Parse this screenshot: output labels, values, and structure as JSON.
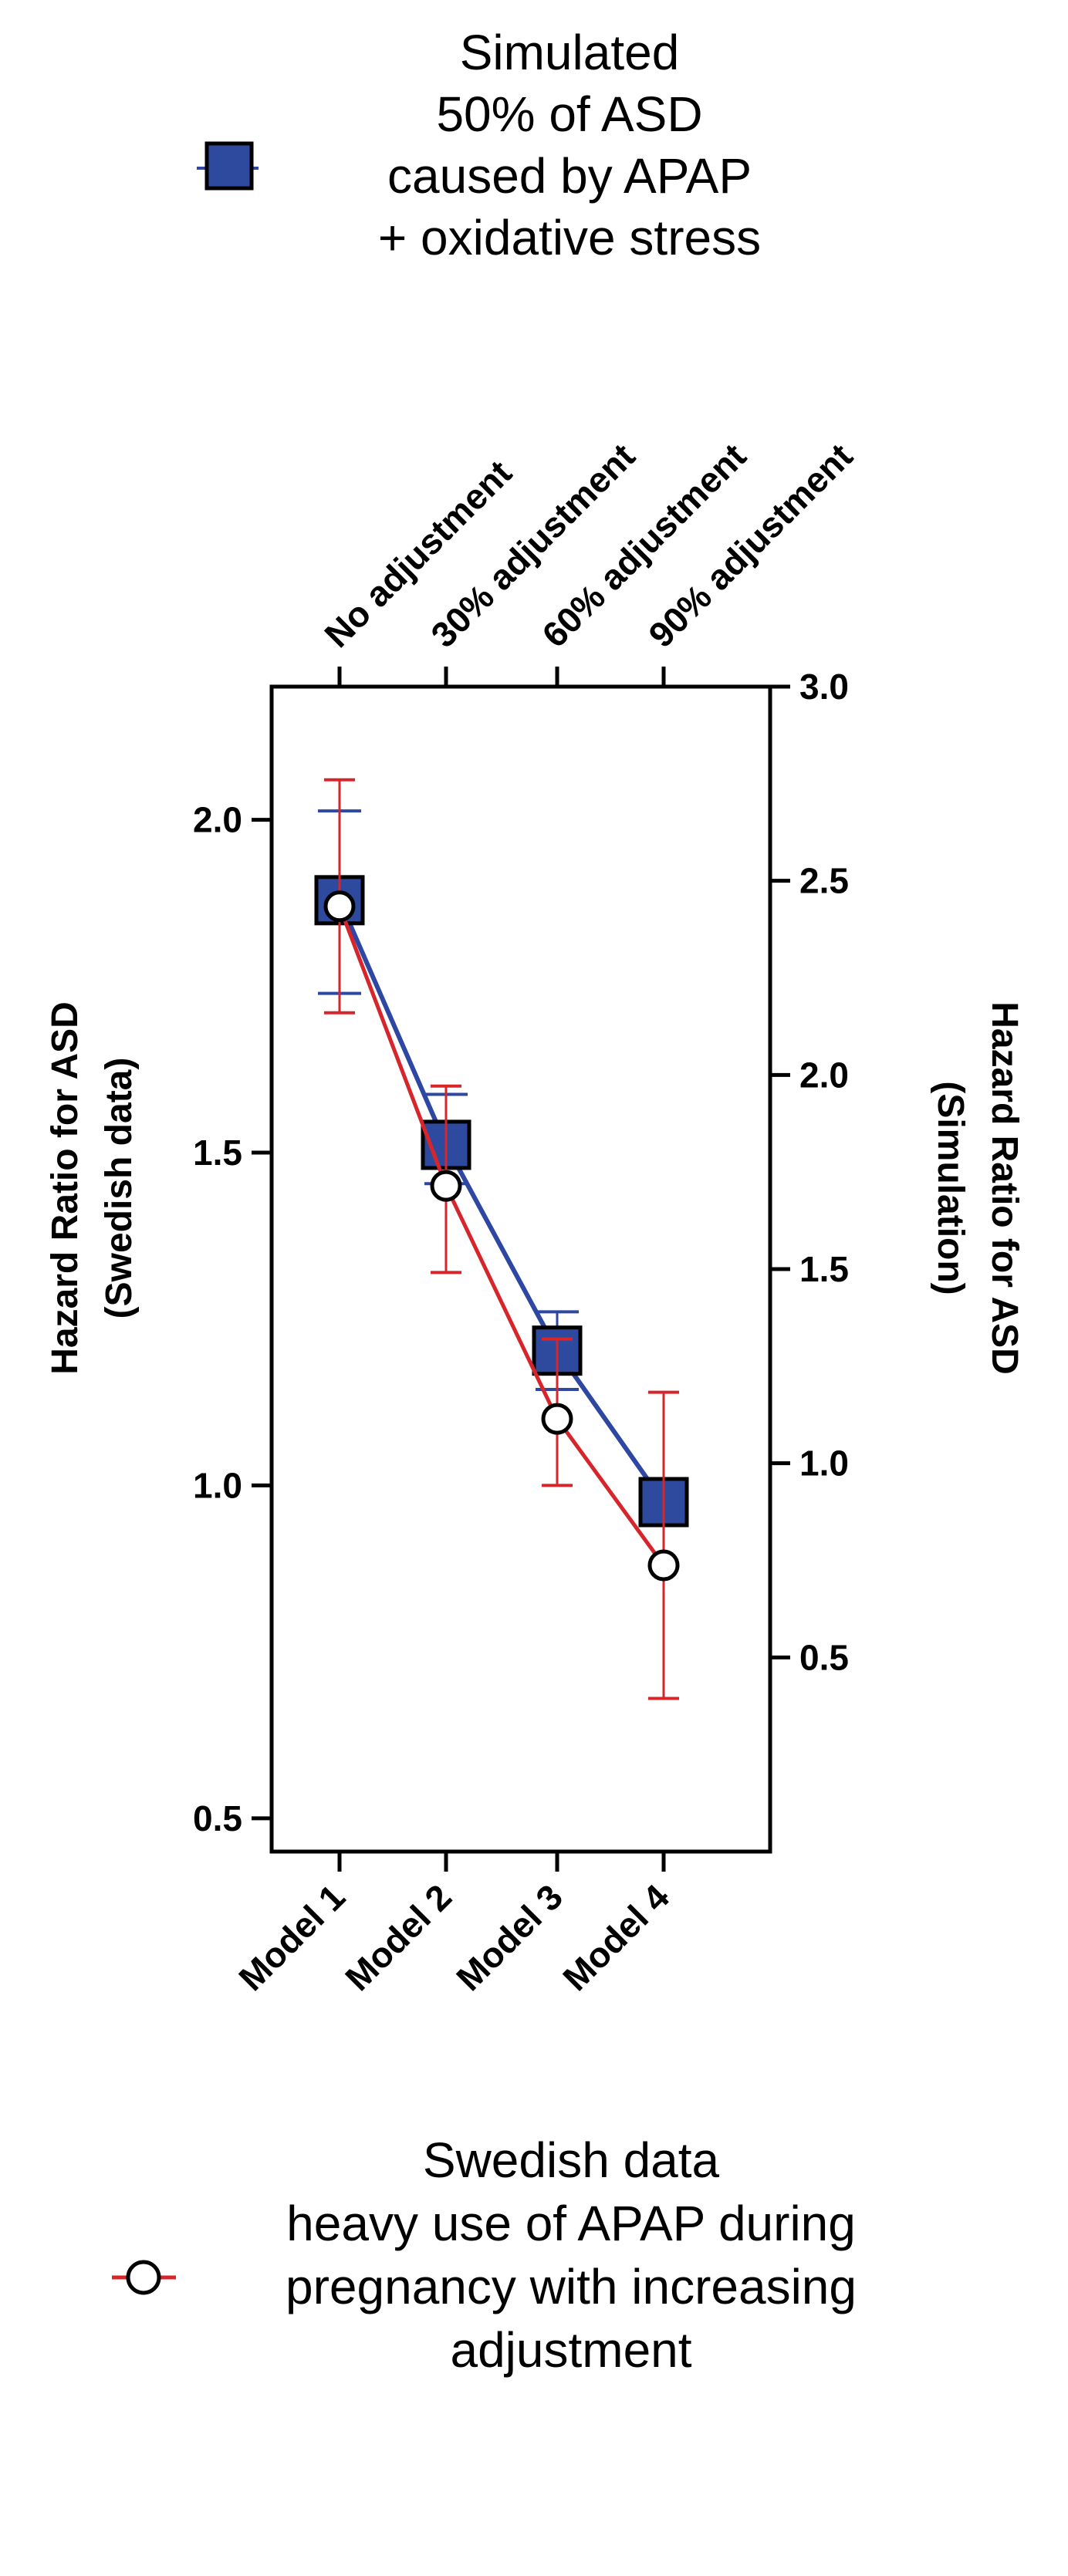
{
  "chart_data": {
    "type": "line",
    "categories": [
      "Model 1",
      "Model 2",
      "Model 3",
      "Model 4"
    ],
    "top_categories": [
      "No adjustment",
      "30% adjustment",
      "60% adjustment",
      "90% adjustment"
    ],
    "left_axis": {
      "title_lines": [
        "Hazard Ratio for ASD",
        "(Swedish data)"
      ],
      "range": [
        0.45,
        2.2
      ],
      "ticks": [
        0.5,
        1.0,
        1.5,
        2.0
      ],
      "tick_labels": [
        "0.5",
        "1.0",
        "1.5",
        "2.0"
      ]
    },
    "right_axis": {
      "title_lines": [
        "Hazard Ratio for ASD",
        "(Simulation)"
      ],
      "range": [
        0.0,
        3.0
      ],
      "ticks": [
        0.5,
        1.0,
        1.5,
        2.0,
        2.5,
        3.0
      ],
      "tick_labels": [
        "0.5",
        "1.0",
        "1.5",
        "2.0",
        "2.5",
        "3.0"
      ]
    },
    "series": [
      {
        "name": "Simulated 50% of ASD caused by APAP + oxidative stress",
        "legend_lines": [
          "Simulated",
          "50% of ASD",
          "caused by APAP",
          "+ oxidative stress"
        ],
        "axis": "right",
        "marker": "square",
        "color": "#2e47a3",
        "fill": "#2e4a9e",
        "values": [
          2.45,
          1.82,
          1.29,
          0.9
        ],
        "error_low": [
          2.21,
          1.72,
          1.19,
          0.87
        ],
        "error_high": [
          2.68,
          1.95,
          1.39,
          0.94
        ]
      },
      {
        "name": "Swedish data heavy use of APAP during pregnancy with increasing adjustment",
        "legend_lines": [
          "Swedish data",
          "heavy use of APAP during",
          "pregnancy with increasing",
          "adjustment"
        ],
        "axis": "left",
        "marker": "circle",
        "color": "#d7262b",
        "fill": "#ffffff",
        "values": [
          1.87,
          1.45,
          1.1,
          0.88
        ],
        "error_low": [
          1.71,
          1.32,
          1.0,
          0.68
        ],
        "error_high": [
          2.06,
          1.6,
          1.22,
          1.14
        ]
      }
    ]
  }
}
